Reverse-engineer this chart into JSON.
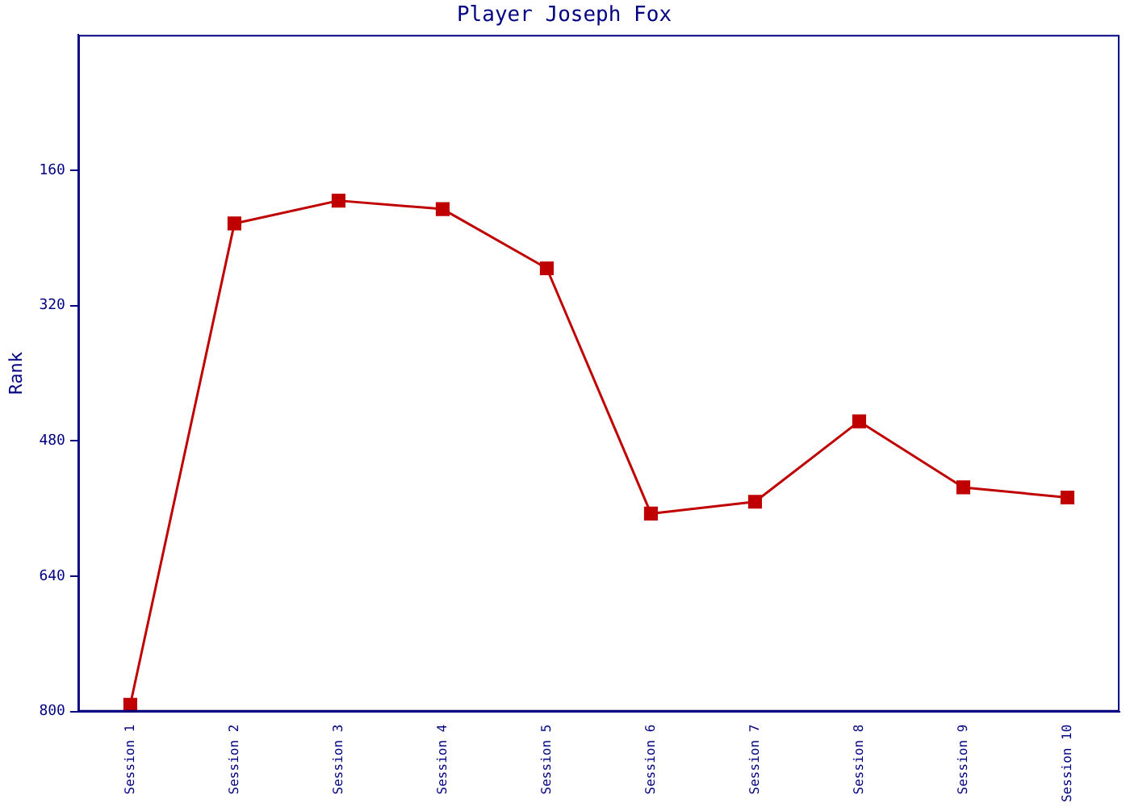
{
  "chart_data": {
    "type": "line",
    "title": "Player Joseph Fox",
    "ylabel": "Rank",
    "categories": [
      "Session 1",
      "Session 2",
      "Session 3",
      "Session 4",
      "Session 5",
      "Session 6",
      "Session 7",
      "Session 8",
      "Session 9",
      "Session 10"
    ],
    "series": [
      {
        "color": "#c00000",
        "values": [
          792,
          223,
          196,
          206,
          276,
          566,
          552,
          457,
          535,
          547
        ]
      }
    ],
    "ylim": [
      800,
      0
    ],
    "yticks": [
      160,
      320,
      480,
      640,
      800
    ],
    "grid": false,
    "legend": false,
    "marker": "square",
    "line_style": "solid"
  }
}
